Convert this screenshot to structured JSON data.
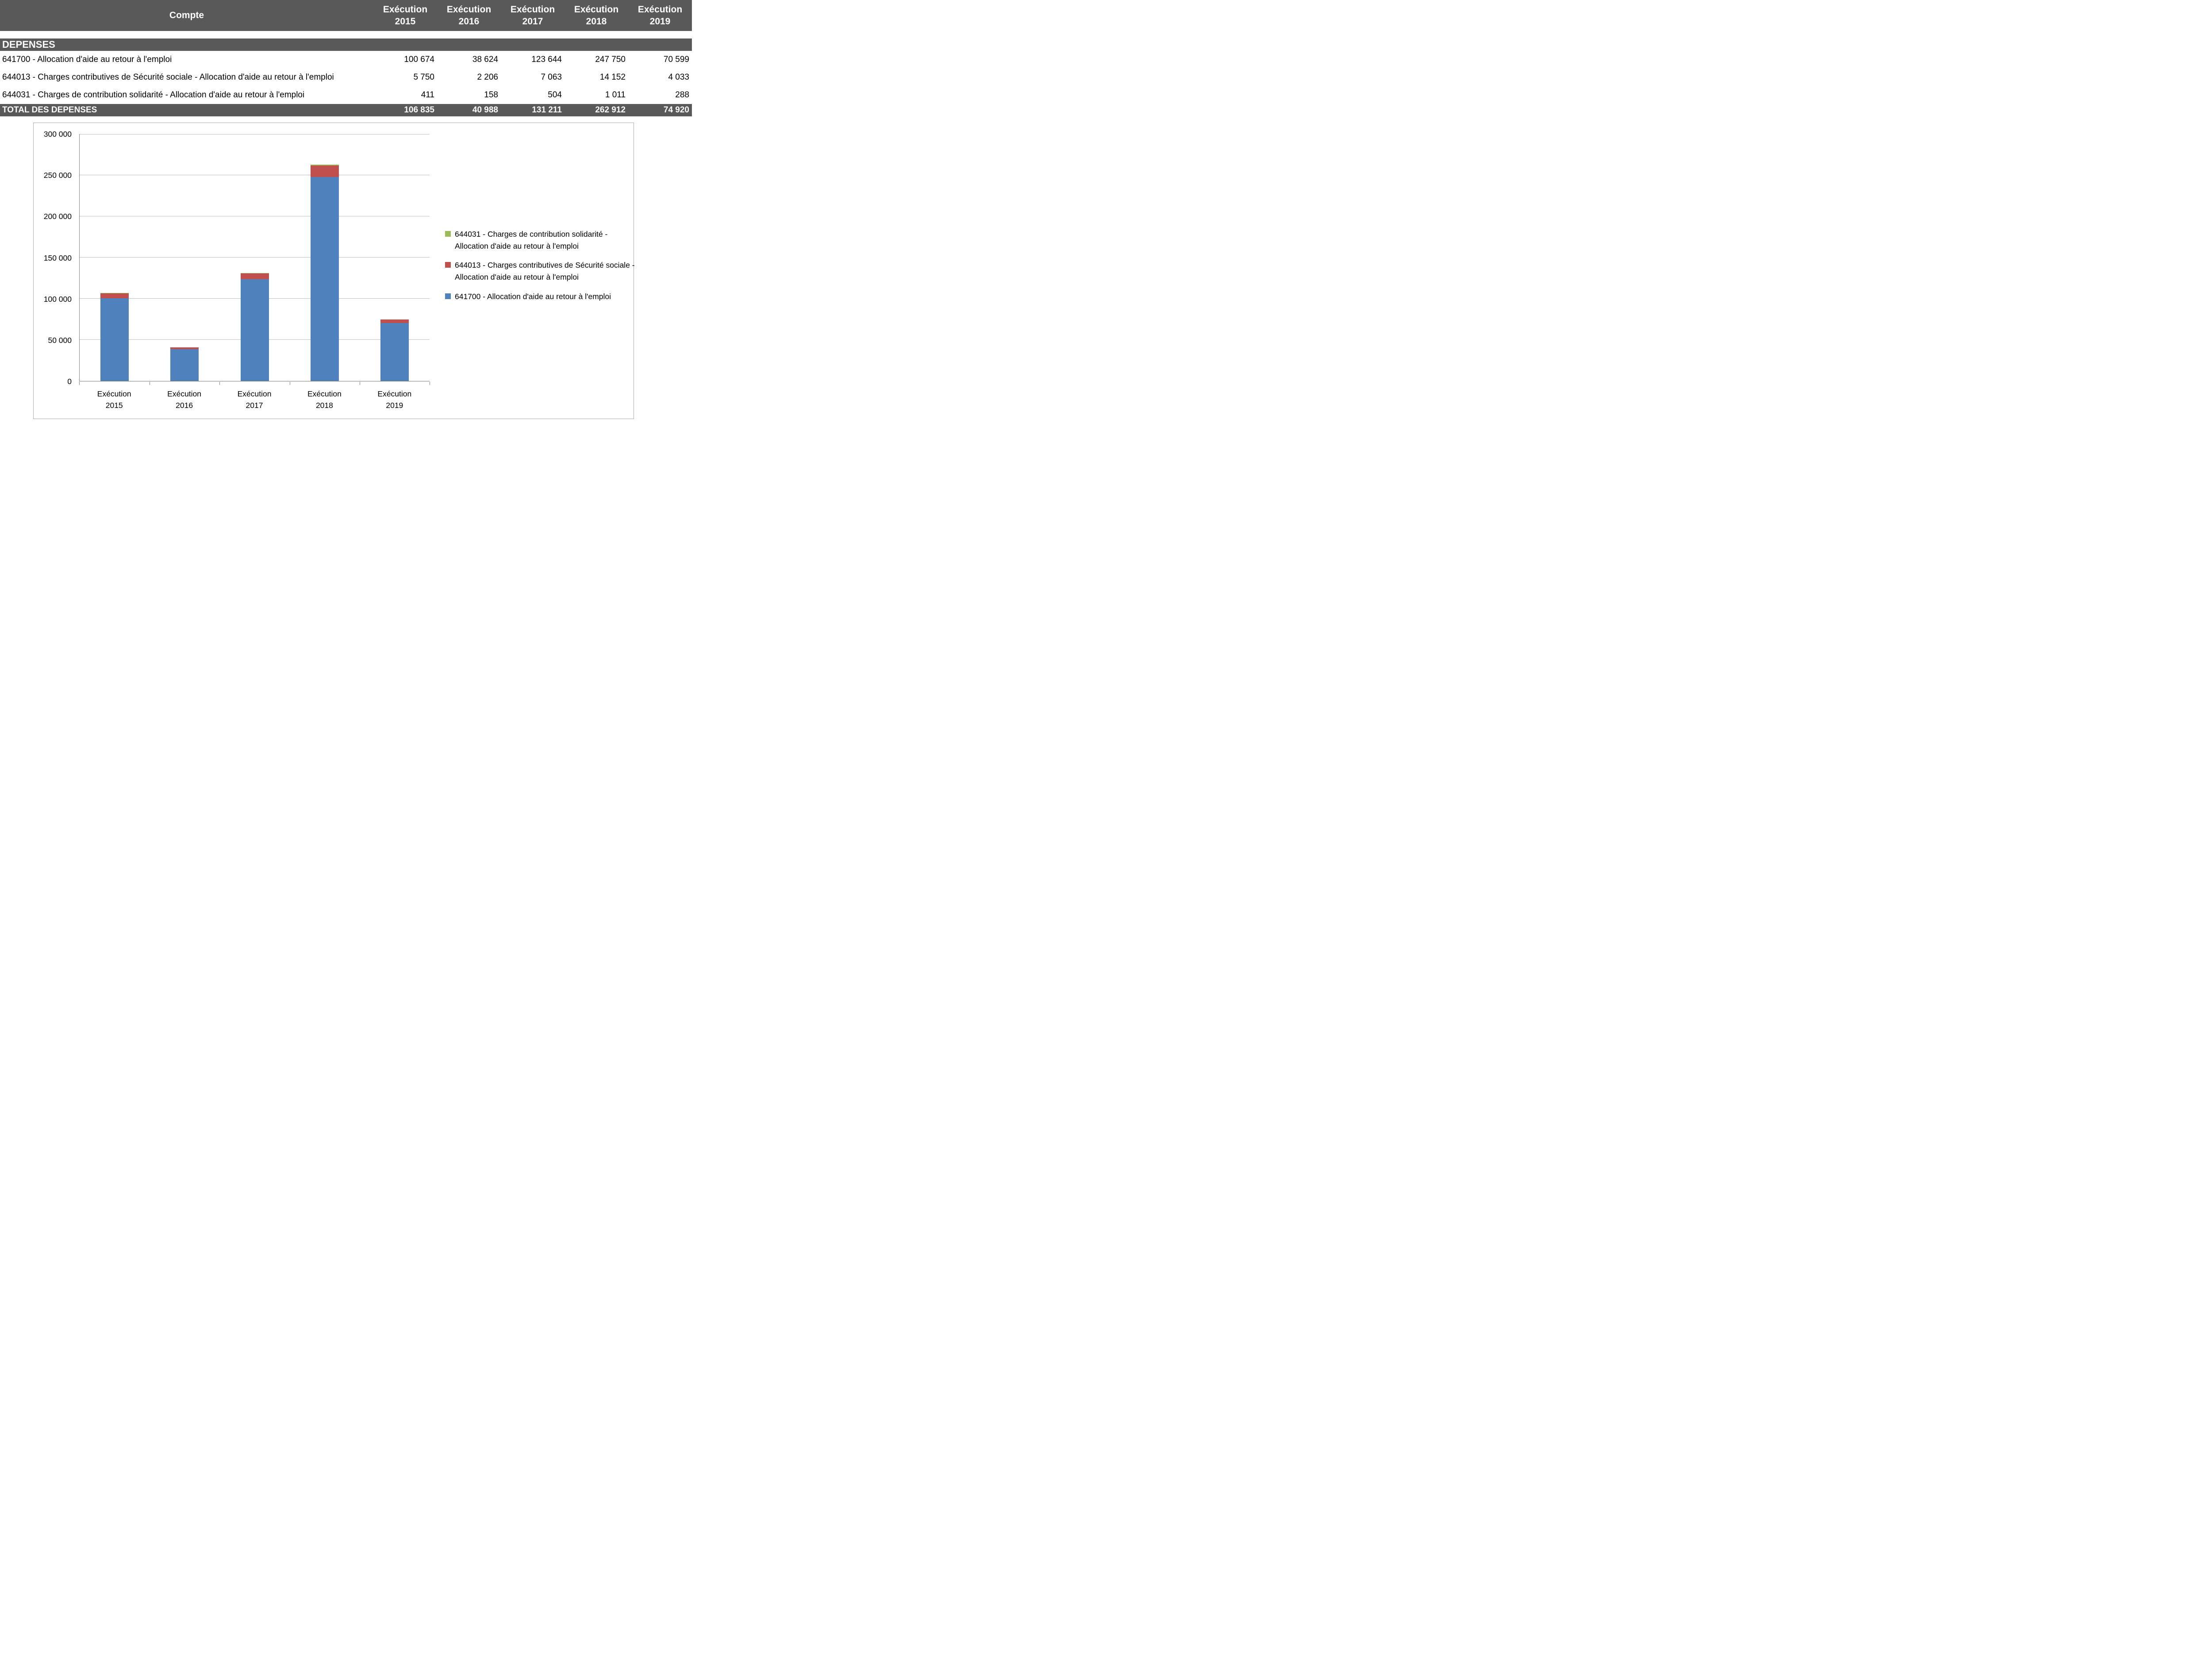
{
  "colors": {
    "header_bg": "#595959",
    "header_text": "#FFFFFF",
    "series_blue": "#4F81BD",
    "series_red": "#C0504D",
    "series_green": "#9BBB59"
  },
  "table": {
    "header": {
      "compte": "Compte",
      "years": [
        "Exécution 2015",
        "Exécution 2016",
        "Exécution 2017",
        "Exécution 2018",
        "Exécution 2019"
      ]
    },
    "section_title": "DEPENSES",
    "rows": [
      {
        "label": "641700 - Allocation d'aide au retour à l'emploi",
        "values": [
          "100 674",
          "38 624",
          "123 644",
          "247 750",
          "70 599"
        ]
      },
      {
        "label": "644013 - Charges contributives de Sécurité sociale - Allocation d'aide au retour à l'emploi",
        "values": [
          "5 750",
          "2 206",
          "7 063",
          "14 152",
          "4 033"
        ]
      },
      {
        "label": "644031 - Charges de contribution solidarité - Allocation d'aide au retour à l'emploi",
        "values": [
          "411",
          "158",
          "504",
          "1 011",
          "288"
        ]
      }
    ],
    "total": {
      "label": "TOTAL DES DEPENSES",
      "values": [
        "106 835",
        "40 988",
        "131 211",
        "262 912",
        "74 920"
      ]
    }
  },
  "chart_data": {
    "type": "bar",
    "stacked": true,
    "categories": [
      "Exécution\n2015",
      "Exécution\n2016",
      "Exécution\n2017",
      "Exécution\n2018",
      "Exécution\n2019"
    ],
    "series": [
      {
        "name": "641700 - Allocation d'aide au retour à l'emploi",
        "color": "#4F81BD",
        "values": [
          100674,
          38624,
          123644,
          247750,
          70599
        ]
      },
      {
        "name": "644013 - Charges contributives de Sécurité sociale - Allocation d'aide au retour à l'emploi",
        "color": "#C0504D",
        "values": [
          5750,
          2206,
          7063,
          14152,
          4033
        ]
      },
      {
        "name": "644031 - Charges de contribution solidarité - Allocation d'aide au retour à l'emploi",
        "color": "#9BBB59",
        "values": [
          411,
          158,
          504,
          1011,
          288
        ]
      }
    ],
    "title": "",
    "xlabel": "",
    "ylabel": "",
    "ylim": [
      0,
      300000
    ],
    "ytick_step": 50000,
    "yticks": [
      {
        "value": 0,
        "label": "0"
      },
      {
        "value": 50000,
        "label": "50 000"
      },
      {
        "value": 100000,
        "label": "100 000"
      },
      {
        "value": 150000,
        "label": "150 000"
      },
      {
        "value": 200000,
        "label": "200 000"
      },
      {
        "value": 250000,
        "label": "250 000"
      },
      {
        "value": 300000,
        "label": "300 000"
      }
    ],
    "grid": true,
    "legend_position": "right",
    "legend_order": "reversed"
  }
}
